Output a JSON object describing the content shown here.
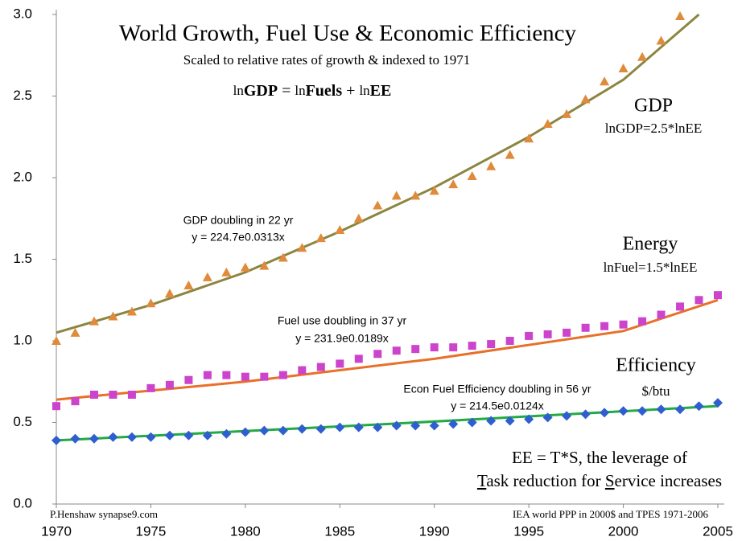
{
  "chart_data": {
    "type": "scatter",
    "title": "World Growth, Fuel Use & Economic Efficiency",
    "subtitle": "Scaled to relative rates of growth & indexed to 1971",
    "formula_parts": [
      "ln",
      "GDP",
      " = ",
      "ln",
      "Fuels",
      " + ",
      "ln",
      "EE"
    ],
    "x": [
      1970,
      1971,
      1972,
      1973,
      1974,
      1975,
      1976,
      1977,
      1978,
      1979,
      1980,
      1981,
      1982,
      1983,
      1984,
      1985,
      1986,
      1987,
      1988,
      1989,
      1990,
      1991,
      1992,
      1993,
      1994,
      1995,
      1996,
      1997,
      1998,
      1999,
      2000,
      2001,
      2002,
      2003,
      2004,
      2005
    ],
    "series": [
      {
        "marker": "triangle",
        "color": "#e08a3c",
        "values": [
          1.0,
          1.05,
          1.12,
          1.15,
          1.18,
          1.23,
          1.29,
          1.34,
          1.39,
          1.42,
          1.45,
          1.46,
          1.51,
          1.57,
          1.63,
          1.68,
          1.75,
          1.83,
          1.89,
          1.89,
          1.92,
          1.96,
          2.01,
          2.07,
          2.14,
          2.24,
          2.33,
          2.39,
          2.48,
          2.59,
          2.67,
          2.74,
          2.84,
          2.99,
          null,
          null
        ]
      },
      {
        "marker": "square",
        "color": "#cc44cc",
        "values": [
          0.6,
          0.63,
          0.67,
          0.67,
          0.67,
          0.71,
          0.73,
          0.76,
          0.79,
          0.79,
          0.78,
          0.78,
          0.79,
          0.82,
          0.84,
          0.86,
          0.89,
          0.92,
          0.94,
          0.95,
          0.96,
          0.96,
          0.97,
          0.98,
          1.0,
          1.03,
          1.04,
          1.05,
          1.08,
          1.09,
          1.1,
          1.12,
          1.16,
          1.21,
          1.25,
          1.28
        ]
      },
      {
        "marker": "diamond",
        "color": "#2f5fcf",
        "values": [
          0.39,
          0.4,
          0.4,
          0.41,
          0.41,
          0.41,
          0.42,
          0.42,
          0.42,
          0.43,
          0.44,
          0.45,
          0.45,
          0.46,
          0.46,
          0.47,
          0.47,
          0.47,
          0.48,
          0.48,
          0.48,
          0.49,
          0.5,
          0.51,
          0.51,
          0.52,
          0.53,
          0.54,
          0.55,
          0.56,
          0.57,
          0.57,
          0.58,
          0.58,
          0.6,
          0.62
        ]
      }
    ],
    "trends": [
      {
        "color": "#8c8540",
        "x": [
          1970,
          1975,
          1980,
          1985,
          1990,
          1995,
          2000,
          2004
        ],
        "values": [
          1.05,
          1.22,
          1.42,
          1.67,
          1.94,
          2.25,
          2.6,
          3.0
        ]
      },
      {
        "color": "#e8702a",
        "x": [
          1970,
          1980,
          1990,
          2000,
          2005
        ],
        "values": [
          0.64,
          0.75,
          0.89,
          1.06,
          1.25
        ]
      },
      {
        "color": "#22aa44",
        "x": [
          1970,
          1987.5,
          2005
        ],
        "values": [
          0.39,
          0.49,
          0.6
        ]
      }
    ],
    "annotations": [
      "GDP",
      "lnGDP=2.5*lnEE",
      "Energy",
      "lnFuel=1.5*lnEE",
      "Efficiency",
      "$/btu",
      "GDP  doubling in 22 yr",
      "y = 224.7e0.0313x",
      "Fuel use doubling in 37 yr",
      "y = 231.9e0.0189x",
      "Econ Fuel Efficiency doubling in 56 yr",
      "y = 214.5e0.0124x",
      "EE = T*S, the leverage of",
      "P.Henshaw synapse9.com",
      "IEA world PPP in 2000$ and TPES 1971-2006"
    ],
    "note_parts": [
      "T",
      "ask reduction for ",
      "S",
      "ervice increases"
    ],
    "xlim": [
      1970,
      2005
    ],
    "ylim": [
      0,
      3
    ],
    "xticks": [
      1970,
      1975,
      1980,
      1985,
      1990,
      1995,
      2000,
      2005
    ],
    "yticks": [
      {
        "value": 0,
        "label": "0.0"
      },
      {
        "value": 0.5,
        "label": "0.5"
      },
      {
        "value": 1,
        "label": "1.0"
      },
      {
        "value": 1.5,
        "label": "1.5"
      },
      {
        "value": 2,
        "label": "2.0"
      },
      {
        "value": 2.5,
        "label": "2.5"
      },
      {
        "value": 3,
        "label": "3.0"
      }
    ]
  }
}
